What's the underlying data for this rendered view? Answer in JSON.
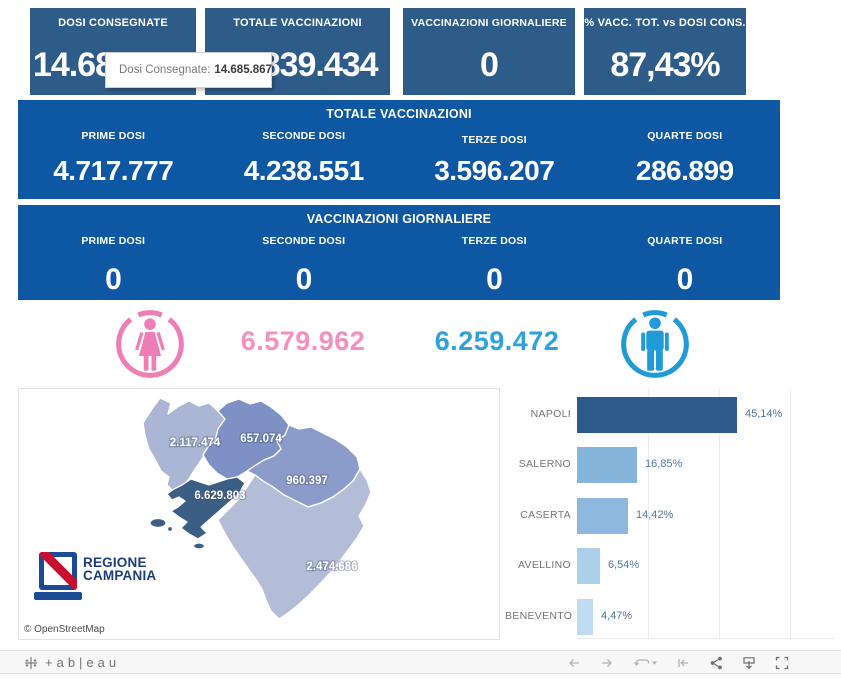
{
  "kpis": [
    {
      "label": "DOSI  CONSEGNATE",
      "value": "14.685.867"
    },
    {
      "label": "TOTALE VACCINAZIONI",
      "value": "12.839.434"
    },
    {
      "label": "VACCINAZIONI GIORNALIERE",
      "value": "0"
    },
    {
      "label": "% VACC. TOT. vs DOSI CONS.",
      "value": "87,43%"
    }
  ],
  "tooltip": {
    "label": "Dosi Consegnate:",
    "value": "14.685.867"
  },
  "totale_vaccinazioni": {
    "title": "TOTALE VACCINAZIONI",
    "items": [
      {
        "label": "PRIME DOSI",
        "value": "4.717.777"
      },
      {
        "label": "SECONDE DOSI",
        "value": "4.238.551"
      },
      {
        "label": "TERZE DOSI",
        "value": "3.596.207"
      },
      {
        "label": "QUARTE DOSI",
        "value": "286.899"
      }
    ]
  },
  "vaccinazioni_giornaliere": {
    "title": "VACCINAZIONI GIORNALIERE",
    "items": [
      {
        "label": "PRIME DOSI",
        "value": "0"
      },
      {
        "label": "SECONDE DOSI",
        "value": "0"
      },
      {
        "label": "TERZE DOSI",
        "value": "0"
      },
      {
        "label": "QUARTE DOSI",
        "value": "0"
      }
    ]
  },
  "gender": {
    "female_total": "6.579.962",
    "male_total": "6.259.472",
    "female_color": "#ef7eb6",
    "male_color": "#209bd8"
  },
  "map": {
    "attribution": "© OpenStreetMap",
    "logo_line1": "REGIONE",
    "logo_line2": "CAMPANIA",
    "regions": [
      {
        "area": "northwest",
        "value": "2.117.474",
        "color": "#aab6d3"
      },
      {
        "area": "north",
        "value": "657.074",
        "color": "#7e91c4"
      },
      {
        "area": "east",
        "value": "960.397",
        "color": "#8c9cca"
      },
      {
        "area": "gulf-coast",
        "value": "6.629.803",
        "color": "#3b5e84"
      },
      {
        "area": "south",
        "value": "2.474.686",
        "color": "#b3bdd8"
      }
    ]
  },
  "bars": {
    "rows": [
      {
        "label": "NAPOLI",
        "value_label": "45,14%",
        "pct": 45.14,
        "color": "#2d5a8a"
      },
      {
        "label": "SALERNO",
        "value_label": "16,85%",
        "pct": 16.85,
        "color": "#85b5da"
      },
      {
        "label": "CASERTA",
        "value_label": "14,42%",
        "pct": 14.42,
        "color": "#8cb9dd"
      },
      {
        "label": "AVELLINO",
        "value_label": "6,54%",
        "pct": 6.54,
        "color": "#abd0e9"
      },
      {
        "label": "BENEVENTO",
        "value_label": "4,47%",
        "pct": 4.47,
        "color": "#c0dcf0"
      }
    ]
  },
  "footer": {
    "brand": "+ab|eau"
  },
  "chart_data": [
    {
      "type": "bar",
      "orientation": "horizontal",
      "categories": [
        "NAPOLI",
        "SALERNO",
        "CASERTA",
        "AVELLINO",
        "BENEVENTO"
      ],
      "values": [
        45.14,
        16.85,
        14.42,
        6.54,
        4.47
      ],
      "value_labels": [
        "45,14%",
        "16,85%",
        "14,42%",
        "6,54%",
        "4,47%"
      ],
      "title": "",
      "xlabel": "",
      "ylabel": "",
      "xlim": [
        0,
        60
      ],
      "grid": true,
      "legend": false
    },
    {
      "type": "heatmap",
      "subtype": "choropleth-map",
      "title": "",
      "regions": [
        {
          "area": "northwest",
          "value": 2117474,
          "label": "2.117.474"
        },
        {
          "area": "north",
          "value": 657074,
          "label": "657.074"
        },
        {
          "area": "east",
          "value": 960397,
          "label": "960.397"
        },
        {
          "area": "gulf-coast",
          "value": 6629803,
          "label": "6.629.803"
        },
        {
          "area": "south",
          "value": 2474686,
          "label": "2.474.686"
        }
      ]
    }
  ]
}
